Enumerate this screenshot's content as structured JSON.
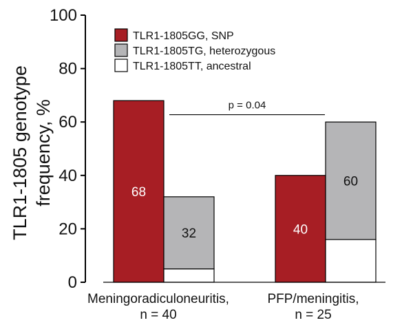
{
  "chart_data": {
    "type": "bar",
    "title": "",
    "ylabel_lines": [
      "TLR1-1805 genotype",
      "frequency, %"
    ],
    "xlabel": "",
    "ylim": [
      0,
      100
    ],
    "yticks": [
      "0",
      "20",
      "40",
      "60",
      "80",
      "100"
    ],
    "grid": false,
    "legend_position": "top-left",
    "categories": [
      {
        "lines": [
          "Meningoradiculoneuritis,",
          "n = 40"
        ]
      },
      {
        "lines": [
          "PFP/meningitis,",
          "n = 25"
        ]
      }
    ],
    "series": [
      {
        "name": "TLR1-1805GG, SNP",
        "color": "#a71e24",
        "values": [
          68,
          40
        ]
      },
      {
        "name": "TLR1-1805TG, heterozygous",
        "color": "#b5b5b7",
        "values": [
          32,
          60
        ]
      },
      {
        "name": "TLR1-1805TT, ancestral",
        "color": "#ffffff",
        "values": [
          5,
          16
        ]
      }
    ],
    "bar_labels": [
      {
        "text": "68",
        "series": 0,
        "category": 0,
        "color": "#ffffff"
      },
      {
        "text": "32",
        "series": 1,
        "category": 0,
        "color": "#111111"
      },
      {
        "text": "40",
        "series": 0,
        "category": 1,
        "color": "#ffffff"
      },
      {
        "text": "60",
        "series": 1,
        "category": 1,
        "color": "#111111"
      }
    ],
    "annotation": {
      "text": "p = 0.04",
      "y_value": 63
    }
  }
}
